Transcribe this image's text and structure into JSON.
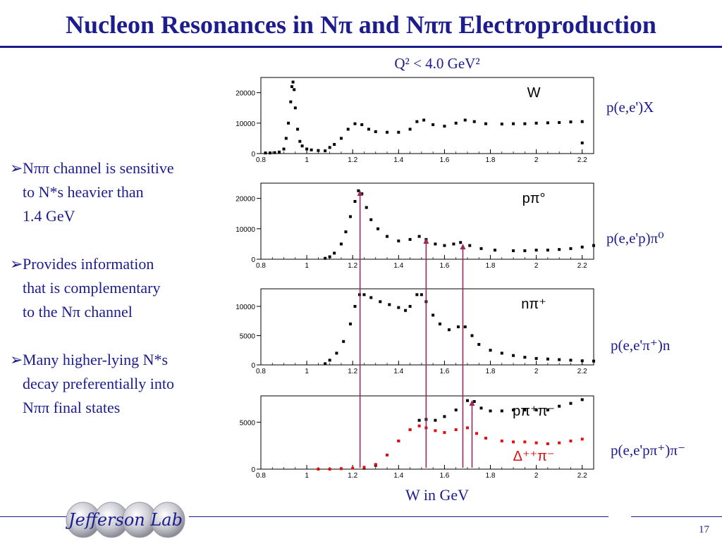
{
  "slide": {
    "title": "Nucleon Resonances in Nπ and Nππ Electroproduction",
    "q2_label": "Q² < 4.0 GeV²",
    "xaxis_label": "W in GeV",
    "page_number": "17",
    "logo_text": "Jefferson Lab"
  },
  "bullets": [
    {
      "lines": [
        "Nππ channel is sensitive",
        "to N*s heavier than",
        "1.4 GeV"
      ]
    },
    {
      "lines": [
        "Provides information",
        "that is complementary",
        "to the Nπ channel"
      ]
    },
    {
      "lines": [
        "Many higher-lying N*s",
        "decay preferentially into",
        "Nππ final states"
      ]
    }
  ],
  "reactions": [
    "p(e,e')X",
    "p(e,e'p)π⁰",
    "p(e,e'π⁺)n",
    "p(e,e'pπ⁺)π⁻"
  ],
  "colors": {
    "text": "#1c1c8f",
    "marker_black": "#000000",
    "marker_red": "#e01010",
    "arrow": "#9a2a5a"
  },
  "chart_data": [
    {
      "type": "scatter",
      "panel_label": "W",
      "xlim": [
        0.8,
        2.25
      ],
      "ylim": [
        0,
        25000
      ],
      "x_ticks": [
        "0.8",
        "1",
        "1.2",
        "1.4",
        "1.6",
        "1.8",
        "2",
        "2.2"
      ],
      "y_ticks": [
        {
          "value": 0,
          "label": "0"
        },
        {
          "value": 10000,
          "label": "10000"
        },
        {
          "value": 20000,
          "label": "20000"
        }
      ],
      "series": [
        {
          "color": "#000000",
          "points": [
            [
              0.82,
              200
            ],
            [
              0.84,
              200
            ],
            [
              0.86,
              300
            ],
            [
              0.88,
              500
            ],
            [
              0.9,
              1500
            ],
            [
              0.91,
              5000
            ],
            [
              0.92,
              10000
            ],
            [
              0.93,
              17000
            ],
            [
              0.935,
              22000
            ],
            [
              0.94,
              23500
            ],
            [
              0.945,
              21000
            ],
            [
              0.95,
              15000
            ],
            [
              0.96,
              8000
            ],
            [
              0.97,
              4000
            ],
            [
              0.98,
              2500
            ],
            [
              1.0,
              1500
            ],
            [
              1.02,
              1200
            ],
            [
              1.05,
              1000
            ],
            [
              1.08,
              900
            ],
            [
              1.1,
              2000
            ],
            [
              1.12,
              3000
            ],
            [
              1.15,
              5000
            ],
            [
              1.18,
              8000
            ],
            [
              1.21,
              9800
            ],
            [
              1.24,
              9500
            ],
            [
              1.27,
              8000
            ],
            [
              1.3,
              7200
            ],
            [
              1.35,
              7000
            ],
            [
              1.4,
              7000
            ],
            [
              1.45,
              8000
            ],
            [
              1.48,
              10500
            ],
            [
              1.51,
              11000
            ],
            [
              1.55,
              9500
            ],
            [
              1.6,
              9000
            ],
            [
              1.65,
              10000
            ],
            [
              1.69,
              11000
            ],
            [
              1.73,
              10500
            ],
            [
              1.78,
              9800
            ],
            [
              1.85,
              9700
            ],
            [
              1.9,
              9800
            ],
            [
              1.95,
              9800
            ],
            [
              2.0,
              10000
            ],
            [
              2.05,
              10100
            ],
            [
              2.1,
              10200
            ],
            [
              2.15,
              10400
            ],
            [
              2.2,
              10500
            ],
            [
              2.2,
              3500
            ]
          ]
        }
      ]
    },
    {
      "type": "scatter",
      "panel_label": "pπ°",
      "xlim": [
        0.8,
        2.25
      ],
      "ylim": [
        0,
        25000
      ],
      "x_ticks": [
        "0.8",
        "1",
        "1.2",
        "1.4",
        "1.6",
        "1.8",
        "2",
        "2.2"
      ],
      "y_ticks": [
        {
          "value": 0,
          "label": "0"
        },
        {
          "value": 10000,
          "label": "10000"
        },
        {
          "value": 20000,
          "label": "20000"
        }
      ],
      "series": [
        {
          "color": "#000000",
          "points": [
            [
              1.08,
              300
            ],
            [
              1.1,
              800
            ],
            [
              1.12,
              2000
            ],
            [
              1.15,
              5000
            ],
            [
              1.17,
              9000
            ],
            [
              1.19,
              14000
            ],
            [
              1.21,
              19000
            ],
            [
              1.225,
              22500
            ],
            [
              1.24,
              21500
            ],
            [
              1.26,
              17000
            ],
            [
              1.28,
              13000
            ],
            [
              1.31,
              10000
            ],
            [
              1.35,
              7500
            ],
            [
              1.4,
              6000
            ],
            [
              1.45,
              6500
            ],
            [
              1.49,
              7500
            ],
            [
              1.52,
              6500
            ],
            [
              1.56,
              5000
            ],
            [
              1.6,
              4500
            ],
            [
              1.64,
              5000
            ],
            [
              1.67,
              5500
            ],
            [
              1.71,
              4500
            ],
            [
              1.76,
              3500
            ],
            [
              1.82,
              3000
            ],
            [
              1.9,
              2800
            ],
            [
              1.95,
              2800
            ],
            [
              2.0,
              3000
            ],
            [
              2.05,
              3000
            ],
            [
              2.1,
              3200
            ],
            [
              2.15,
              3500
            ],
            [
              2.2,
              4000
            ],
            [
              2.25,
              4500
            ]
          ]
        }
      ]
    },
    {
      "type": "scatter",
      "panel_label": "nπ⁺",
      "xlim": [
        0.8,
        2.25
      ],
      "ylim": [
        0,
        13000
      ],
      "x_ticks": [
        "0.8",
        "1",
        "1.2",
        "1.4",
        "1.6",
        "1.8",
        "2",
        "2.2"
      ],
      "y_ticks": [
        {
          "value": 0,
          "label": "0"
        },
        {
          "value": 5000,
          "label": "5000"
        },
        {
          "value": 10000,
          "label": "10000"
        }
      ],
      "series": [
        {
          "color": "#000000",
          "points": [
            [
              1.08,
              200
            ],
            [
              1.1,
              800
            ],
            [
              1.13,
              2000
            ],
            [
              1.16,
              4000
            ],
            [
              1.19,
              7000
            ],
            [
              1.21,
              10000
            ],
            [
              1.23,
              12000
            ],
            [
              1.25,
              12000
            ],
            [
              1.28,
              11500
            ],
            [
              1.32,
              10800
            ],
            [
              1.36,
              10300
            ],
            [
              1.4,
              9800
            ],
            [
              1.43,
              9300
            ],
            [
              1.45,
              10000
            ],
            [
              1.48,
              12000
            ],
            [
              1.5,
              12000
            ],
            [
              1.52,
              10800
            ],
            [
              1.55,
              8500
            ],
            [
              1.58,
              7000
            ],
            [
              1.62,
              6000
            ],
            [
              1.66,
              6500
            ],
            [
              1.69,
              6500
            ],
            [
              1.72,
              5000
            ],
            [
              1.75,
              3500
            ],
            [
              1.8,
              2500
            ],
            [
              1.85,
              2000
            ],
            [
              1.9,
              1600
            ],
            [
              1.95,
              1300
            ],
            [
              2.0,
              1100
            ],
            [
              2.05,
              1000
            ],
            [
              2.1,
              900
            ],
            [
              2.15,
              800
            ],
            [
              2.2,
              700
            ],
            [
              2.25,
              650
            ]
          ]
        }
      ]
    },
    {
      "type": "scatter",
      "panel_label": "pπ⁺π⁻",
      "secondary_label": "Δ⁺⁺π⁻",
      "xlim": [
        0.8,
        2.25
      ],
      "ylim": [
        0,
        7800
      ],
      "x_ticks": [
        "0.8",
        "1",
        "1.2",
        "1.4",
        "1.6",
        "1.8",
        "2",
        "2.2"
      ],
      "y_ticks": [
        {
          "value": 0,
          "label": "0"
        },
        {
          "value": 5000,
          "label": "5000"
        }
      ],
      "series": [
        {
          "color": "#000000",
          "points": [
            [
              1.25,
              100
            ],
            [
              1.3,
              400
            ],
            [
              1.35,
              1500
            ],
            [
              1.4,
              3000
            ],
            [
              1.45,
              4200
            ],
            [
              1.49,
              5200
            ],
            [
              1.52,
              5300
            ],
            [
              1.56,
              5200
            ],
            [
              1.6,
              5600
            ],
            [
              1.65,
              6300
            ],
            [
              1.7,
              7300
            ],
            [
              1.73,
              7200
            ],
            [
              1.76,
              6500
            ],
            [
              1.8,
              6200
            ],
            [
              1.85,
              6200
            ],
            [
              1.9,
              6300
            ],
            [
              1.95,
              6300
            ],
            [
              2.0,
              6300
            ],
            [
              2.05,
              6300
            ],
            [
              2.1,
              6700
            ],
            [
              2.15,
              7000
            ],
            [
              2.2,
              7400
            ]
          ]
        },
        {
          "color": "#e01010",
          "points": [
            [
              1.05,
              0
            ],
            [
              1.1,
              0
            ],
            [
              1.15,
              50
            ],
            [
              1.2,
              100
            ],
            [
              1.25,
              200
            ],
            [
              1.3,
              500
            ],
            [
              1.35,
              1500
            ],
            [
              1.4,
              3000
            ],
            [
              1.45,
              4200
            ],
            [
              1.49,
              4600
            ],
            [
              1.52,
              4400
            ],
            [
              1.56,
              4100
            ],
            [
              1.6,
              3900
            ],
            [
              1.65,
              4200
            ],
            [
              1.7,
              4400
            ],
            [
              1.74,
              3800
            ],
            [
              1.78,
              3300
            ],
            [
              1.85,
              3000
            ],
            [
              1.9,
              2900
            ],
            [
              1.95,
              2900
            ],
            [
              2.0,
              2800
            ],
            [
              2.05,
              2700
            ],
            [
              2.1,
              2800
            ],
            [
              2.15,
              3000
            ],
            [
              2.2,
              3200
            ]
          ]
        }
      ]
    }
  ],
  "resonance_markers_w": [
    1.232,
    1.52,
    1.68,
    1.72
  ]
}
